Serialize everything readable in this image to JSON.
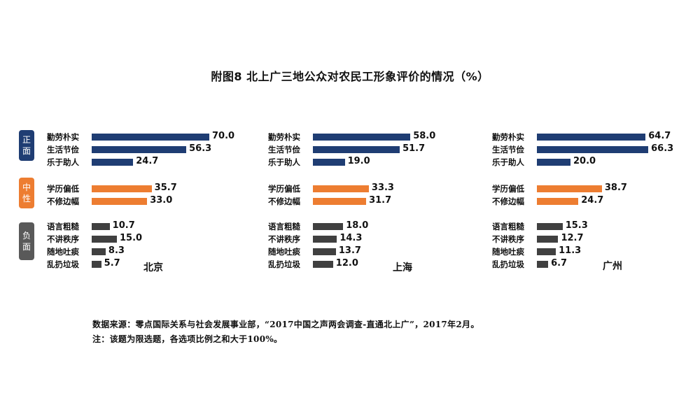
{
  "tags": {
    "positive": "正面",
    "neutral": "中性",
    "negative": "负面"
  },
  "colors": {
    "positive": "#1f3d73",
    "neutral": "#ed7d31",
    "negative": "#404040"
  },
  "notes": {
    "source": "数据来源：零点国际关系与社会发展事业部，“2017中国之声两会调查-直通北上广”，2017年2月。",
    "note": "注：该题为限选题，各选项比例之和大于100%。"
  },
  "chart_data": {
    "type": "bar",
    "orientation": "horizontal",
    "title": "附图8  北上广三地公众对农民工形象评价的情况（%）",
    "categories": [
      "勤劳朴实",
      "生活节俭",
      "乐于助人",
      "学历偏低",
      "不修边幅",
      "语言粗糙",
      "不讲秩序",
      "随地吐痰",
      "乱扔垃圾"
    ],
    "groups": [
      "positive",
      "positive",
      "positive",
      "neutral",
      "neutral",
      "negative",
      "negative",
      "negative",
      "negative"
    ],
    "series": [
      {
        "name": "北京",
        "values": [
          70.0,
          56.3,
          24.7,
          35.7,
          33.0,
          10.7,
          15.0,
          8.3,
          5.7
        ]
      },
      {
        "name": "上海",
        "values": [
          58.0,
          51.7,
          19.0,
          33.3,
          31.7,
          18.0,
          14.3,
          13.7,
          12.0
        ]
      },
      {
        "name": "广州",
        "values": [
          64.7,
          66.3,
          20.0,
          38.7,
          24.7,
          15.3,
          12.7,
          11.3,
          6.7
        ]
      }
    ]
  }
}
